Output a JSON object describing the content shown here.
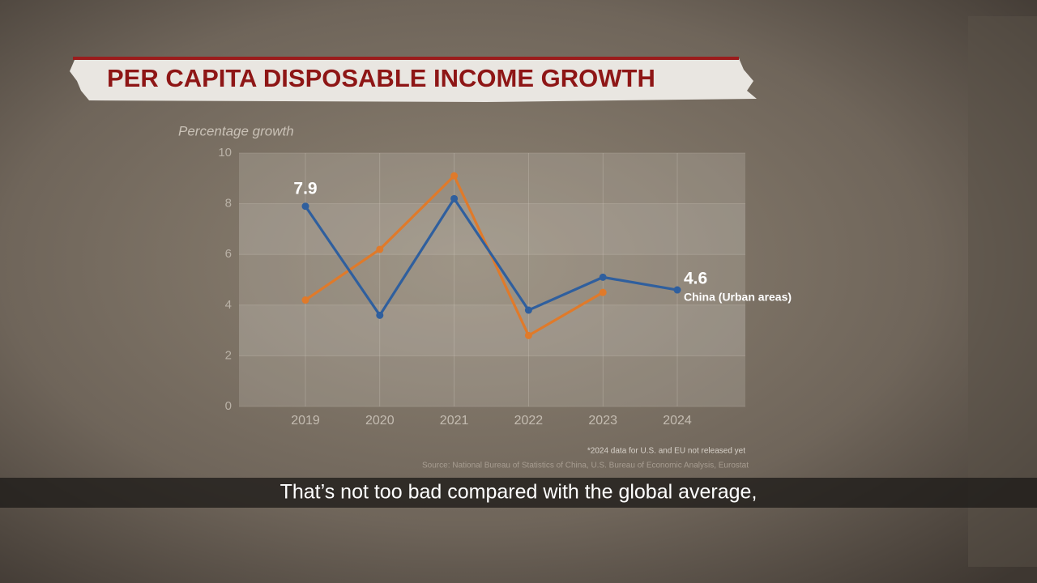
{
  "chart_data": {
    "type": "line",
    "title": "PER CAPITA DISPOSABLE INCOME GROWTH",
    "y_label": "Percentage growth",
    "categories": [
      "2019",
      "2020",
      "2021",
      "2022",
      "2023",
      "2024"
    ],
    "series": [
      {
        "name": "China (Urban areas)",
        "color": "#2f5f9e",
        "values": [
          7.9,
          3.6,
          8.2,
          3.8,
          5.1,
          4.6
        ],
        "labeled": [
          0,
          5
        ]
      },
      {
        "color": "#e07a2a",
        "values": [
          4.2,
          6.2,
          9.1,
          2.8,
          4.5,
          null
        ]
      }
    ],
    "ylim": [
      0,
      10
    ],
    "yticks": [
      0,
      2,
      4,
      6,
      8,
      10
    ],
    "grid": true,
    "footnote": "*2024 data for U.S. and EU not released yet",
    "source": "Source: National Bureau of Statistics of China, U.S. Bureau of Economic Analysis, Eurostat"
  },
  "caption": "That’s not too bad compared with the global average,"
}
